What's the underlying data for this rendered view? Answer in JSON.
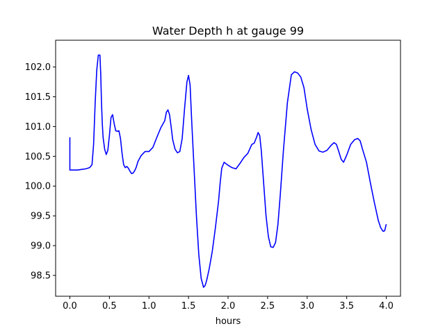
{
  "chart_data": {
    "type": "line",
    "title": "Water Depth h at gauge 99",
    "xlabel": "hours",
    "ylabel": "",
    "xlim": [
      -0.18,
      4.18
    ],
    "ylim": [
      98.15,
      102.45
    ],
    "xticks": [
      0.0,
      0.5,
      1.0,
      1.5,
      2.0,
      2.5,
      3.0,
      3.5,
      4.0
    ],
    "xtick_labels": [
      "0.0",
      "0.5",
      "1.0",
      "1.5",
      "2.0",
      "2.5",
      "3.0",
      "3.5",
      "4.0"
    ],
    "yticks": [
      98.5,
      99.0,
      99.5,
      100.0,
      100.5,
      101.0,
      101.5,
      102.0
    ],
    "ytick_labels": [
      "98.5",
      "99.0",
      "99.5",
      "100.0",
      "100.5",
      "101.0",
      "101.5",
      "102.0"
    ],
    "grid": false,
    "series": [
      {
        "color": "#0000ff",
        "x": [
          0.0,
          0.0,
          0.05,
          0.1,
          0.15,
          0.2,
          0.25,
          0.28,
          0.3,
          0.32,
          0.34,
          0.36,
          0.38,
          0.39,
          0.4,
          0.41,
          0.42,
          0.44,
          0.46,
          0.48,
          0.5,
          0.52,
          0.54,
          0.56,
          0.58,
          0.6,
          0.62,
          0.64,
          0.66,
          0.68,
          0.7,
          0.72,
          0.74,
          0.76,
          0.78,
          0.8,
          0.82,
          0.84,
          0.86,
          0.9,
          0.95,
          1.0,
          1.05,
          1.1,
          1.15,
          1.2,
          1.22,
          1.24,
          1.26,
          1.28,
          1.3,
          1.33,
          1.36,
          1.39,
          1.42,
          1.45,
          1.48,
          1.5,
          1.52,
          1.54,
          1.57,
          1.6,
          1.63,
          1.66,
          1.69,
          1.71,
          1.73,
          1.76,
          1.8,
          1.84,
          1.88,
          1.9,
          1.92,
          1.95,
          1.97,
          2.0,
          2.05,
          2.1,
          2.15,
          2.2,
          2.25,
          2.3,
          2.33,
          2.36,
          2.38,
          2.4,
          2.42,
          2.45,
          2.48,
          2.51,
          2.54,
          2.57,
          2.6,
          2.63,
          2.66,
          2.7,
          2.75,
          2.8,
          2.84,
          2.88,
          2.92,
          2.96,
          3.0,
          3.05,
          3.1,
          3.15,
          3.2,
          3.25,
          3.3,
          3.34,
          3.37,
          3.4,
          3.43,
          3.46,
          3.5,
          3.55,
          3.6,
          3.64,
          3.67,
          3.7,
          3.75,
          3.8,
          3.85,
          3.9,
          3.93,
          3.96,
          3.98,
          4.0
        ],
        "y": [
          100.82,
          100.27,
          100.27,
          100.27,
          100.28,
          100.29,
          100.31,
          100.36,
          100.7,
          101.4,
          101.95,
          102.2,
          102.2,
          101.9,
          101.4,
          101.05,
          100.82,
          100.62,
          100.53,
          100.6,
          100.85,
          101.15,
          101.2,
          101.05,
          100.93,
          100.92,
          100.93,
          100.8,
          100.55,
          100.36,
          100.31,
          100.33,
          100.3,
          100.25,
          100.21,
          100.22,
          100.26,
          100.32,
          100.41,
          100.51,
          100.58,
          100.58,
          100.65,
          100.82,
          100.98,
          101.1,
          101.24,
          101.28,
          101.2,
          101.0,
          100.78,
          100.62,
          100.56,
          100.58,
          100.8,
          101.3,
          101.75,
          101.86,
          101.7,
          101.1,
          100.3,
          99.5,
          98.85,
          98.45,
          98.3,
          98.33,
          98.42,
          98.6,
          98.9,
          99.3,
          99.75,
          100.05,
          100.3,
          100.4,
          100.38,
          100.35,
          100.31,
          100.29,
          100.38,
          100.48,
          100.55,
          100.7,
          100.72,
          100.82,
          100.9,
          100.85,
          100.6,
          100.05,
          99.5,
          99.15,
          98.98,
          98.97,
          99.05,
          99.35,
          99.85,
          100.6,
          101.4,
          101.87,
          101.92,
          101.9,
          101.83,
          101.65,
          101.3,
          100.95,
          100.7,
          100.59,
          100.57,
          100.6,
          100.68,
          100.73,
          100.7,
          100.58,
          100.45,
          100.4,
          100.52,
          100.7,
          100.78,
          100.8,
          100.76,
          100.62,
          100.4,
          100.05,
          99.72,
          99.42,
          99.3,
          99.24,
          99.25,
          99.36
        ]
      }
    ]
  }
}
